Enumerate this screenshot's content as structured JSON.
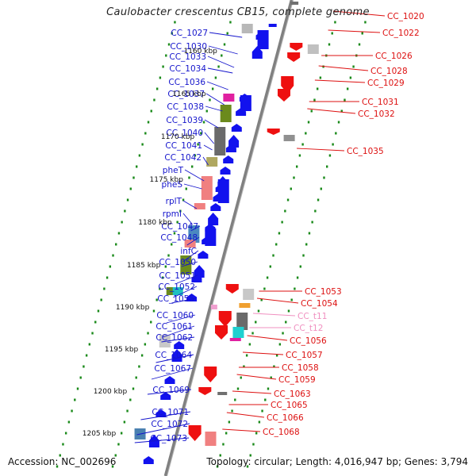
{
  "title": "Caulobacter crescentus CB15, complete genome",
  "footer": {
    "accession": "Accession: NC_002696",
    "topology": "Topology: circular; Length: 4,016,947 bp; Genes: 3,794"
  },
  "colors": {
    "minus_strand_label": "#1414cc",
    "plus_strand_label": "#dd1010",
    "trna_label": "#f090c0",
    "backbone": "#808080",
    "tick": "#1a8a1a"
  },
  "kbp_markers": [
    "1160 kbp",
    "1165 kbp",
    "1170 kbp",
    "1175 kbp",
    "1180 kbp",
    "1185 kbp",
    "1190 kbp",
    "1195 kbp",
    "1200 kbp",
    "1205 kbp"
  ],
  "left_labels": [
    "CC_1027",
    "CC_1030",
    "CC_1033",
    "CC_1034",
    "CC_1036",
    "CC_1037",
    "CC_1038",
    "CC_1039",
    "CC_1040",
    "CC_1041",
    "CC_1042",
    "pheT",
    "pheS",
    "rplT",
    "rpmI",
    "CC_1047",
    "CC_1048",
    "infC",
    "CC_1050",
    "CC_1051",
    "CC_1052",
    "CC_1055",
    "CC_1060",
    "CC_1061",
    "CC_1062",
    "CC_1064",
    "CC_1067",
    "CC_1069",
    "CC_1071",
    "CC_1072",
    "CC_1073"
  ],
  "right_labels": [
    {
      "text": "CC_1020",
      "kind": "cds"
    },
    {
      "text": "CC_1022",
      "kind": "cds"
    },
    {
      "text": "CC_1026",
      "kind": "cds"
    },
    {
      "text": "CC_1028",
      "kind": "cds"
    },
    {
      "text": "CC_1029",
      "kind": "cds"
    },
    {
      "text": "CC_1031",
      "kind": "cds"
    },
    {
      "text": "CC_1032",
      "kind": "cds"
    },
    {
      "text": "CC_1035",
      "kind": "cds"
    },
    {
      "text": "CC_1053",
      "kind": "cds"
    },
    {
      "text": "CC_1054",
      "kind": "cds"
    },
    {
      "text": "CC_t11",
      "kind": "trna"
    },
    {
      "text": "CC_t12",
      "kind": "trna"
    },
    {
      "text": "CC_1056",
      "kind": "cds"
    },
    {
      "text": "CC_1057",
      "kind": "cds"
    },
    {
      "text": "CC_1058",
      "kind": "cds"
    },
    {
      "text": "CC_1059",
      "kind": "cds"
    },
    {
      "text": "CC_1063",
      "kind": "cds"
    },
    {
      "text": "CC_1065",
      "kind": "cds"
    },
    {
      "text": "CC_1066",
      "kind": "cds"
    },
    {
      "text": "CC_1068",
      "kind": "cds"
    }
  ]
}
